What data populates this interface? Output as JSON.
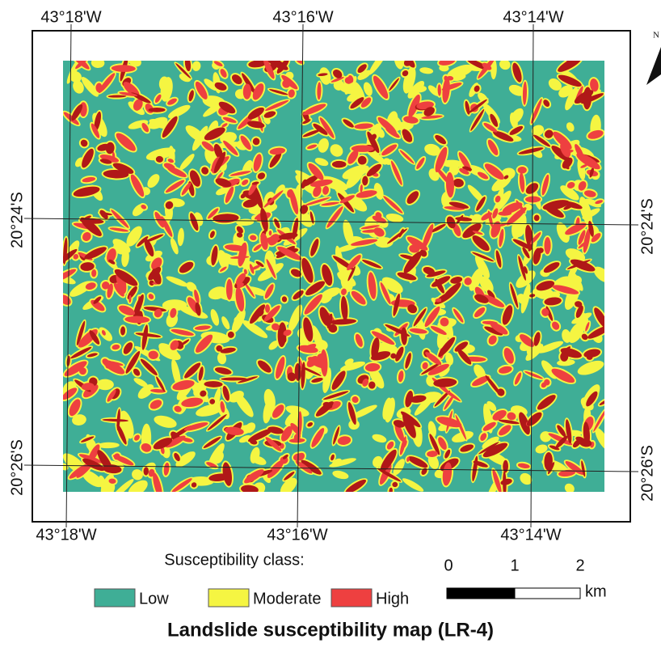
{
  "title": "Landslide susceptibility map (LR-4)",
  "graticule": {
    "top": [
      "43°18'W",
      "43°16'W",
      "43°14'W"
    ],
    "bottom": [
      "43°18'W",
      "43°16'W",
      "43°14'W"
    ],
    "left": [
      "20°24'S",
      "20°26'S"
    ],
    "right": [
      "20°24'S",
      "20°26'S"
    ]
  },
  "north": "N",
  "legend": {
    "title": "Susceptibility class:",
    "items": [
      {
        "label": "Low",
        "color": "#3fae96"
      },
      {
        "label": "Moderate",
        "color": "#f5f542"
      },
      {
        "label": "High",
        "color": "#ee4040"
      }
    ]
  },
  "scale_bar": {
    "labels": [
      "0",
      "1",
      "2"
    ],
    "unit": "km"
  }
}
